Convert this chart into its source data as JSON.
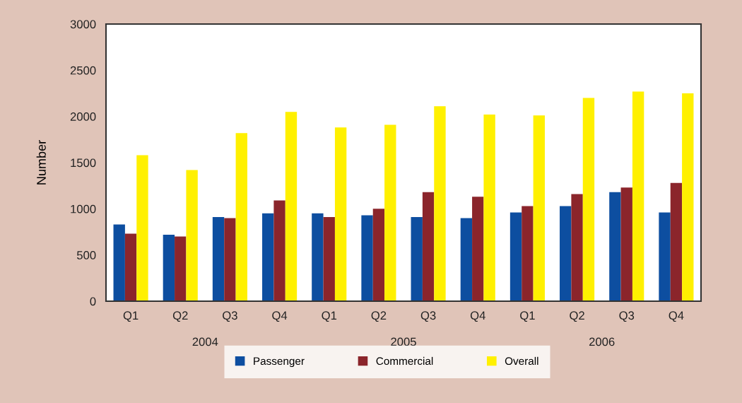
{
  "chart_data": {
    "type": "bar",
    "ylabel": "Number",
    "categories": [
      "Q1",
      "Q2",
      "Q3",
      "Q4",
      "Q1",
      "Q2",
      "Q3",
      "Q4",
      "Q1",
      "Q2",
      "Q3",
      "Q4"
    ],
    "series": [
      {
        "name": "Passenger",
        "color": "#0d4ea0",
        "values": [
          830,
          720,
          910,
          950,
          950,
          930,
          910,
          900,
          960,
          1030,
          1180,
          960
        ]
      },
      {
        "name": "Commercial",
        "color": "#8b252b",
        "values": [
          730,
          700,
          900,
          1090,
          910,
          1000,
          1180,
          1130,
          1030,
          1160,
          1230,
          1280
        ]
      },
      {
        "name": "Overall",
        "color": "#fff000",
        "values": [
          1580,
          1420,
          1820,
          2050,
          1880,
          1910,
          2110,
          2020,
          2010,
          2200,
          2270,
          2250
        ]
      }
    ],
    "ylim": [
      0,
      3000
    ],
    "yticks": [
      0,
      500,
      1000,
      1500,
      2000,
      2500,
      3000
    ],
    "annotations": [
      "2004",
      "2005",
      "2006"
    ],
    "grid": false,
    "legend": "bottom"
  }
}
